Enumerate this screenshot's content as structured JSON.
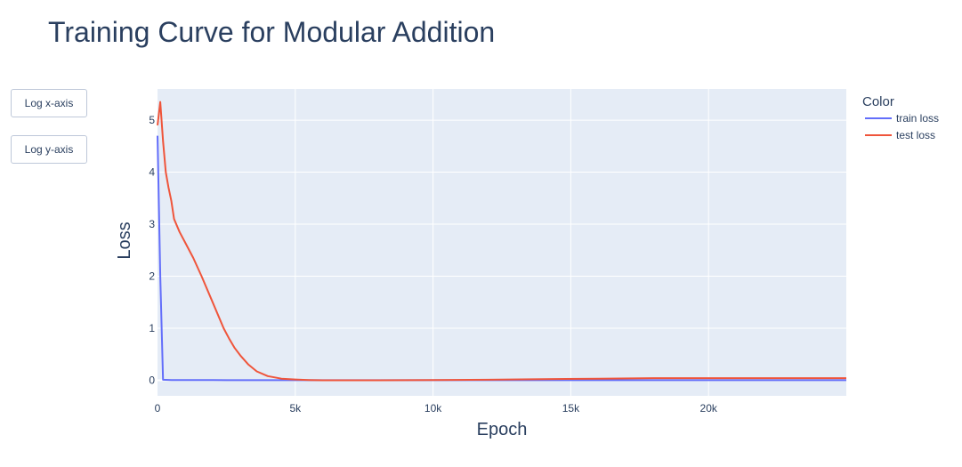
{
  "buttons": {
    "log_x": "Log x-axis",
    "log_y": "Log y-axis"
  },
  "colors": {
    "plot_bg": "#e5ecf6",
    "grid": "#ffffff",
    "train": "#636efa",
    "test": "#ef553b"
  },
  "chart_data": {
    "type": "line",
    "title": "Training Curve for Modular Addition",
    "xlabel": "Epoch",
    "ylabel": "Loss",
    "xlim": [
      0,
      25000
    ],
    "ylim": [
      -0.3,
      5.6
    ],
    "x_ticks": [
      0,
      5000,
      10000,
      15000,
      20000
    ],
    "x_tick_labels": [
      "0",
      "5k",
      "10k",
      "15k",
      "20k"
    ],
    "y_ticks": [
      0,
      1,
      2,
      3,
      4,
      5
    ],
    "y_tick_labels": [
      "0",
      "1",
      "2",
      "3",
      "4",
      "5"
    ],
    "grid": true,
    "legend": {
      "title": "Color",
      "placement": "right"
    },
    "series": [
      {
        "name": "train loss",
        "color": "#636efa",
        "x": [
          0,
          100,
          200,
          500,
          1000,
          2000,
          5000,
          10000,
          15000,
          20000,
          25000
        ],
        "y": [
          4.7,
          2.0,
          0.01,
          0.005,
          0.003,
          0.002,
          0.001,
          0.001,
          0.001,
          0.001,
          0.001
        ]
      },
      {
        "name": "test loss",
        "color": "#ef553b",
        "x": [
          0,
          100,
          200,
          300,
          400,
          500,
          600,
          800,
          1000,
          1300,
          1600,
          2000,
          2400,
          2600,
          2800,
          3000,
          3300,
          3600,
          4000,
          4500,
          5000,
          5500,
          6000,
          8000,
          10000,
          12000,
          14000,
          16000,
          18000,
          20000,
          22000,
          25000
        ],
        "y": [
          4.9,
          5.35,
          4.6,
          4.0,
          3.7,
          3.45,
          3.1,
          2.85,
          2.65,
          2.35,
          2.0,
          1.5,
          1.0,
          0.8,
          0.62,
          0.48,
          0.3,
          0.17,
          0.08,
          0.03,
          0.015,
          0.005,
          0.0,
          0.0,
          0.005,
          0.01,
          0.02,
          0.03,
          0.04,
          0.04,
          0.04,
          0.04
        ]
      }
    ]
  }
}
